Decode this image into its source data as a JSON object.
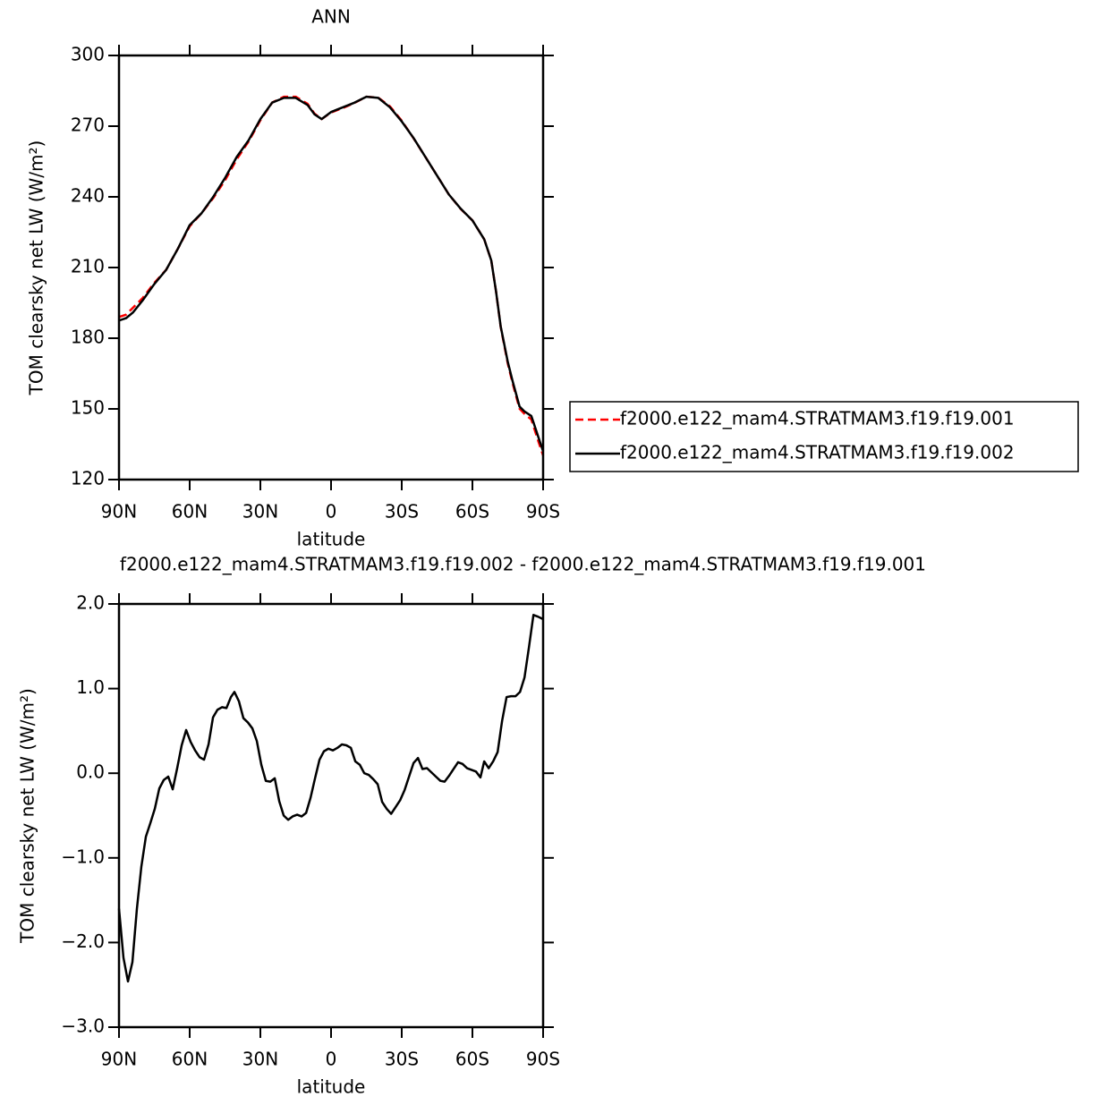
{
  "chart_data": [
    {
      "type": "line",
      "title": "ANN",
      "x_label": "latitude",
      "y_label": "TOM clearsky net LW (W/m²)",
      "x": [
        90,
        87,
        84,
        80,
        75,
        70,
        65,
        60,
        55,
        50,
        45,
        40,
        35,
        30,
        25,
        20,
        15,
        10,
        7,
        4,
        0,
        -5,
        -10,
        -15,
        -20,
        -25,
        -30,
        -35,
        -40,
        -45,
        -50,
        -55,
        -60,
        -65,
        -68,
        -70,
        -72,
        -75,
        -77,
        -80,
        -82,
        -85,
        -88,
        -90
      ],
      "series": [
        {
          "name": "f2000.e122_mam4.STRATMAM3.f19.f19.001",
          "color": "#ff0000",
          "dash": "dashed",
          "values": [
            189,
            190,
            193,
            197,
            203.5,
            209,
            218,
            227.5,
            233,
            239.5,
            247,
            256,
            263.5,
            272.5,
            280,
            282.5,
            282.5,
            279.5,
            275.3,
            273,
            275.8,
            277.7,
            279.9,
            282.5,
            282.1,
            278.4,
            272.3,
            264.9,
            257,
            249,
            241,
            234.9,
            230,
            222,
            213,
            200,
            184.8,
            169.3,
            161.1,
            150.1,
            148,
            145.5,
            136.2,
            130.2
          ]
        },
        {
          "name": "f2000.e122_mam4.STRATMAM3.f19.f19.002",
          "color": "#000000",
          "dash": "solid",
          "values": [
            187.5,
            188.5,
            191,
            196,
            203,
            209,
            218,
            228,
            233,
            240,
            248,
            257,
            264,
            273,
            280,
            282,
            282,
            279,
            275,
            273,
            276,
            278,
            280,
            282.5,
            282,
            278,
            272,
            265,
            257,
            249,
            241,
            235,
            230,
            222,
            213,
            200,
            185,
            170,
            162,
            151,
            149,
            147,
            138,
            132
          ]
        }
      ],
      "xlim": [
        90,
        -90
      ],
      "xticks": [
        {
          "value": 90,
          "label": "90N"
        },
        {
          "value": 60,
          "label": "60N"
        },
        {
          "value": 30,
          "label": "30N"
        },
        0,
        {
          "value": -30,
          "label": "30S"
        },
        {
          "value": -60,
          "label": "60S"
        },
        {
          "value": -90,
          "label": "90S"
        }
      ],
      "ylim": [
        120,
        300
      ],
      "yticks": [
        120,
        150,
        180,
        210,
        240,
        270,
        300
      ],
      "legend": "right"
    },
    {
      "type": "line",
      "title": "f2000.e122_mam4.STRATMAM3.f19.f19.002 - f2000.e122_mam4.STRATMAM3.f19.f19.001",
      "x_label": "latitude",
      "y_label": "TOM clearsky net LW (W/m²)",
      "x": [
        90,
        88.1,
        86.2,
        84.3,
        82.4,
        80.5,
        78.6,
        76.7,
        74.8,
        72.9,
        71.0,
        69.1,
        67.2,
        65.3,
        63.4,
        61.5,
        59.6,
        57.7,
        55.8,
        53.9,
        52.0,
        50.1,
        48.2,
        46.3,
        44.4,
        42.5,
        41.0,
        39.1,
        37.2,
        35.3,
        33.4,
        31.5,
        29.6,
        27.7,
        25.8,
        23.9,
        22.0,
        20.1,
        18.2,
        16.3,
        14.4,
        12.5,
        10.6,
        8.7,
        6.8,
        4.9,
        3.0,
        1.1,
        -0.8,
        -2.7,
        -4.6,
        -6.5,
        -8.4,
        -10.3,
        -12.2,
        -14.1,
        -16.0,
        -17.9,
        -19.8,
        -21.7,
        -23.6,
        -25.5,
        -27.4,
        -29.3,
        -31.2,
        -33.1,
        -35.0,
        -36.9,
        -38.8,
        -40.7,
        -42.6,
        -44.5,
        -46.4,
        -48.2,
        -50.1,
        -52.0,
        -53.9,
        -55.8,
        -57.7,
        -59.6,
        -61.5,
        -63.4,
        -65.0,
        -66.9,
        -68.8,
        -70.7,
        -72.6,
        -74.5,
        -76.4,
        -78.3,
        -80.2,
        -82.1,
        -84.0,
        -85.9,
        -87.8,
        -90
      ],
      "series": [
        {
          "color": "#000000",
          "dash": "solid",
          "values": [
            -1.6,
            -2.18,
            -2.46,
            -2.23,
            -1.6,
            -1.1,
            -0.75,
            -0.59,
            -0.42,
            -0.18,
            -0.08,
            -0.04,
            -0.19,
            0.06,
            0.33,
            0.51,
            0.37,
            0.27,
            0.19,
            0.16,
            0.34,
            0.66,
            0.75,
            0.78,
            0.77,
            0.9,
            0.96,
            0.85,
            0.65,
            0.6,
            0.53,
            0.38,
            0.1,
            -0.09,
            -0.1,
            -0.06,
            -0.33,
            -0.5,
            -0.55,
            -0.51,
            -0.49,
            -0.51,
            -0.47,
            -0.29,
            -0.06,
            0.16,
            0.26,
            0.29,
            0.27,
            0.3,
            0.34,
            0.33,
            0.3,
            0.14,
            0.1,
            0.0,
            -0.02,
            -0.07,
            -0.13,
            -0.34,
            -0.42,
            -0.48,
            -0.4,
            -0.32,
            -0.2,
            -0.04,
            0.12,
            0.18,
            0.05,
            0.06,
            0.01,
            -0.04,
            -0.09,
            -0.1,
            -0.03,
            0.05,
            0.13,
            0.11,
            0.06,
            0.04,
            0.02,
            -0.05,
            0.14,
            0.06,
            0.14,
            0.25,
            0.62,
            0.9,
            0.91,
            0.91,
            0.96,
            1.13,
            1.49,
            1.87,
            1.85,
            1.82
          ]
        }
      ],
      "xlim": [
        90,
        -90
      ],
      "xticks": [
        {
          "value": 90,
          "label": "90N"
        },
        {
          "value": 60,
          "label": "60N"
        },
        {
          "value": 30,
          "label": "30N"
        },
        0,
        {
          "value": -30,
          "label": "30S"
        },
        {
          "value": -60,
          "label": "60S"
        },
        {
          "value": -90,
          "label": "90S"
        }
      ],
      "ylim": [
        -3,
        2
      ],
      "yticks": [
        {
          "value": -3,
          "label": "−3.0"
        },
        {
          "value": -2,
          "label": "−2.0"
        },
        {
          "value": -1,
          "label": "−1.0"
        },
        {
          "value": 0,
          "label": "0.0"
        },
        {
          "value": 1,
          "label": "1.0"
        },
        {
          "value": 2,
          "label": "2.0"
        }
      ]
    }
  ]
}
